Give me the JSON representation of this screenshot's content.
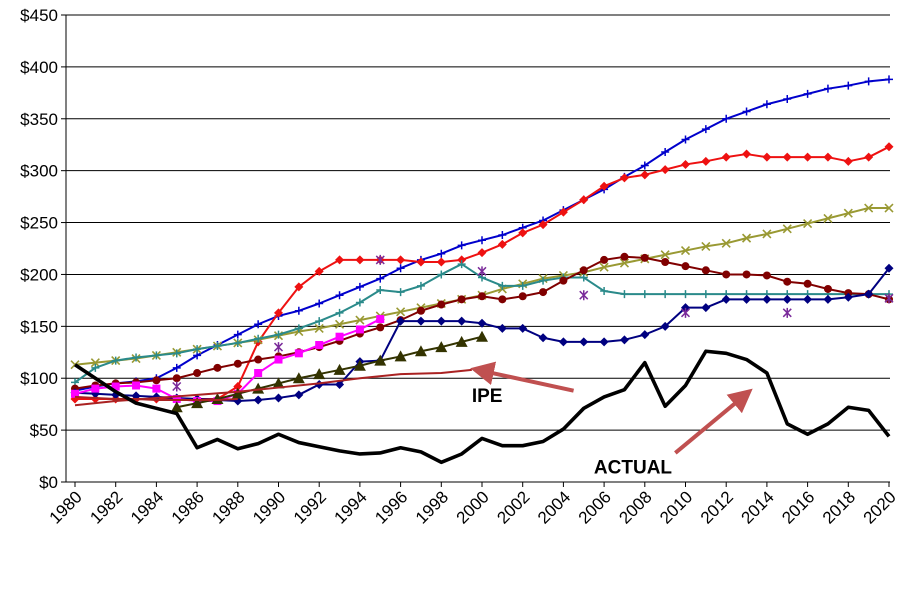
{
  "chart_data": {
    "type": "line",
    "title": "",
    "xlabel": "",
    "ylabel": "",
    "xlim": [
      1980,
      2020
    ],
    "ylim": [
      0,
      450
    ],
    "grid": "horizontal",
    "legend": "none",
    "x_ticks": [
      "1980",
      "1982",
      "1984",
      "1986",
      "1988",
      "1990",
      "1992",
      "1994",
      "1996",
      "1998",
      "2000",
      "2002",
      "2004",
      "2006",
      "2008",
      "2010",
      "2012",
      "2014",
      "2016",
      "2018",
      "2020"
    ],
    "y_ticks": [
      "$0",
      "$50",
      "$100",
      "$150",
      "$200",
      "$250",
      "$300",
      "$350",
      "$400",
      "$450"
    ],
    "annotations": [
      {
        "text": "IPE",
        "x": 1999.5,
        "y": 77
      },
      {
        "text": "ACTUAL",
        "x": 2005.5,
        "y": 8
      }
    ],
    "arrows": [
      {
        "from": [
          2004.5,
          88
        ],
        "to": [
          1999.8,
          108
        ]
      },
      {
        "from": [
          2009.5,
          28
        ],
        "to": [
          2013.0,
          85
        ]
      }
    ],
    "series": [
      {
        "color": "#0000cc",
        "marker": "plus",
        "x": [
          1980,
          1981,
          1982,
          1983,
          1984,
          1985,
          1986,
          1987,
          1988,
          1989,
          1990,
          1991,
          1992,
          1993,
          1994,
          1995,
          1996,
          1997,
          1998,
          1999,
          2000,
          2001,
          2002,
          2003,
          2004,
          2005,
          2006,
          2007,
          2008,
          2009,
          2010,
          2011,
          2012,
          2013,
          2014,
          2015,
          2016,
          2017,
          2018,
          2019,
          2020
        ],
        "y": [
          88,
          92,
          95,
          97,
          100,
          110,
          122,
          132,
          142,
          152,
          160,
          165,
          172,
          180,
          188,
          196,
          206,
          214,
          220,
          228,
          233,
          238,
          245,
          252,
          262,
          272,
          282,
          294,
          305,
          318,
          330,
          340,
          350,
          357,
          364,
          369,
          374,
          379,
          382,
          386,
          388
        ]
      },
      {
        "color": "#ee1111",
        "marker": "diamond",
        "x": [
          1980,
          1981,
          1982,
          1983,
          1984,
          1985,
          1986,
          1987,
          1988,
          1989,
          1990,
          1991,
          1992,
          1993,
          1994,
          1995,
          1996,
          1997,
          1998,
          1999,
          2000,
          2001,
          2002,
          2003,
          2004,
          2005,
          2006,
          2007,
          2008,
          2009,
          2010,
          2011,
          2012,
          2013,
          2014,
          2015,
          2016,
          2017,
          2018,
          2019,
          2020
        ],
        "y": [
          80,
          80,
          80,
          80,
          80,
          80,
          80,
          80,
          92,
          135,
          163,
          188,
          203,
          214,
          214,
          214,
          214,
          212,
          212,
          214,
          221,
          229,
          240,
          248,
          260,
          272,
          285,
          293,
          296,
          301,
          306,
          309,
          313,
          316,
          313,
          313,
          313,
          313,
          309,
          313,
          323
        ]
      },
      {
        "color": "#999933",
        "marker": "x",
        "x": [
          1980,
          1981,
          1982,
          1983,
          1984,
          1985,
          1986,
          1987,
          1988,
          1989,
          1990,
          1991,
          1992,
          1993,
          1994,
          1995,
          1996,
          1997,
          1998,
          1999,
          2000,
          2001,
          2002,
          2003,
          2004,
          2005,
          2006,
          2007,
          2008,
          2009,
          2010,
          2011,
          2012,
          2013,
          2014,
          2015,
          2016,
          2017,
          2018,
          2019,
          2020
        ],
        "y": [
          113,
          115,
          117,
          119,
          122,
          125,
          128,
          131,
          134,
          137,
          141,
          145,
          148,
          152,
          156,
          160,
          164,
          168,
          172,
          176,
          180,
          186,
          191,
          196,
          199,
          202,
          207,
          211,
          215,
          219,
          223,
          227,
          230,
          235,
          239,
          244,
          249,
          254,
          259,
          264,
          264
        ]
      },
      {
        "color": "#2a8a8a",
        "marker": "plus",
        "x": [
          1980,
          1981,
          1982,
          1983,
          1984,
          1985,
          1986,
          1987,
          1988,
          1989,
          1990,
          1991,
          1992,
          1993,
          1994,
          1995,
          1996,
          1997,
          1998,
          1999,
          2000,
          2001,
          2002,
          2003,
          2004,
          2005,
          2006,
          2007,
          2008,
          2009,
          2010,
          2011,
          2012,
          2013,
          2014,
          2015,
          2016,
          2017,
          2018,
          2019,
          2020
        ],
        "y": [
          96,
          110,
          117,
          120,
          122,
          124,
          128,
          131,
          134,
          138,
          142,
          148,
          155,
          163,
          173,
          185,
          183,
          189,
          200,
          210,
          197,
          189,
          189,
          194,
          197,
          197,
          184,
          181,
          181,
          181,
          181,
          181,
          181,
          181,
          181,
          181,
          181,
          181,
          181,
          181,
          181
        ]
      },
      {
        "color": "#800000",
        "marker": "circle",
        "x": [
          1980,
          1981,
          1982,
          1983,
          1984,
          1985,
          1986,
          1987,
          1988,
          1989,
          1990,
          1991,
          1992,
          1993,
          1994,
          1995,
          1996,
          1997,
          1998,
          1999,
          2000,
          2001,
          2002,
          2003,
          2004,
          2005,
          2006,
          2007,
          2008,
          2009,
          2010,
          2011,
          2012,
          2013,
          2014,
          2015,
          2016,
          2017,
          2018,
          2019,
          2020
        ],
        "y": [
          90,
          93,
          95,
          96,
          98,
          100,
          105,
          110,
          114,
          118,
          121,
          125,
          130,
          136,
          143,
          149,
          156,
          165,
          171,
          176,
          179,
          176,
          179,
          183,
          194,
          204,
          214,
          217,
          216,
          212,
          208,
          204,
          200,
          200,
          199,
          193,
          191,
          186,
          182,
          181,
          176
        ]
      },
      {
        "color": "#000080",
        "marker": "diamond",
        "x": [
          1980,
          1981,
          1982,
          1983,
          1984,
          1985,
          1986,
          1987,
          1988,
          1989,
          1990,
          1991,
          1992,
          1993,
          1994,
          1995,
          1996,
          1997,
          1998,
          1999,
          2000,
          2001,
          2002,
          2003,
          2004,
          2005,
          2006,
          2007,
          2008,
          2009,
          2010,
          2011,
          2012,
          2013,
          2014,
          2015,
          2016,
          2017,
          2018,
          2019,
          2020
        ],
        "y": [
          86,
          85,
          84,
          83,
          82,
          81,
          80,
          79,
          78,
          79,
          81,
          84,
          94,
          94,
          116,
          117,
          155,
          155,
          155,
          155,
          153,
          148,
          148,
          139,
          135,
          135,
          135,
          137,
          142,
          150,
          168,
          168,
          176,
          176,
          176,
          176,
          176,
          176,
          178,
          181,
          206
        ]
      },
      {
        "color": "#ff00ff",
        "marker": "square",
        "x": [
          1980,
          1981,
          1982,
          1983,
          1984,
          1985,
          1986,
          1987,
          1988,
          1989,
          1990,
          1991,
          1992,
          1993,
          1994,
          1995
        ],
        "y": [
          85,
          90,
          92,
          93,
          90,
          80,
          78,
          78,
          85,
          105,
          118,
          124,
          132,
          140,
          147,
          157
        ]
      },
      {
        "color": "#333300",
        "marker": "triangle",
        "x": [
          1985,
          1986,
          1987,
          1988,
          1989,
          1990,
          1991,
          1992,
          1993,
          1994,
          1995,
          1996,
          1997,
          1998,
          1999,
          2000
        ],
        "y": [
          72,
          76,
          80,
          85,
          90,
          95,
          100,
          104,
          108,
          112,
          117,
          121,
          126,
          130,
          135,
          140
        ]
      },
      {
        "color": "#aa2222",
        "marker": "none",
        "x": [
          1980,
          1982,
          1984,
          1986,
          1988,
          1990,
          1992,
          1994,
          1996,
          1998,
          1999.5
        ],
        "y": [
          74,
          78,
          81,
          84,
          87,
          91,
          95,
          100,
          104,
          105,
          108
        ]
      },
      {
        "color": "#aa2222",
        "marker": "none",
        "x": [
          1980,
          1981,
          1982,
          1983,
          1984,
          1985,
          1986,
          1987,
          1988
        ],
        "y": [
          82,
          81,
          80,
          80,
          79,
          79,
          79,
          79,
          80
        ]
      },
      {
        "color": "#7a2a9a",
        "marker": "star",
        "x": [
          1985,
          1990,
          1995,
          2000,
          2005,
          2010,
          2015,
          2020
        ],
        "y": [
          92,
          130,
          214,
          203,
          180,
          163,
          163,
          177
        ]
      },
      {
        "color": "#000000",
        "marker": "none",
        "bold": true,
        "x": [
          1980,
          1981,
          1982,
          1983,
          1984,
          1985,
          1986,
          1987,
          1988,
          1989,
          1990,
          1991,
          1992,
          1993,
          1994,
          1995,
          1996,
          1997,
          1998,
          1999,
          2000,
          2001,
          2002,
          2003,
          2004,
          2005,
          2006,
          2007,
          2008,
          2009,
          2010,
          2011,
          2012,
          2013,
          2014,
          2015,
          2016,
          2017,
          2018,
          2019,
          2020
        ],
        "y": [
          113,
          100,
          87,
          76,
          71,
          66,
          33,
          41,
          32,
          37,
          46,
          38,
          34,
          30,
          27,
          28,
          33,
          29,
          19,
          27,
          42,
          35,
          35,
          39,
          51,
          71,
          82,
          89,
          115,
          73,
          93,
          126,
          124,
          118,
          105,
          56,
          46,
          56,
          72,
          69,
          44
        ]
      }
    ]
  }
}
